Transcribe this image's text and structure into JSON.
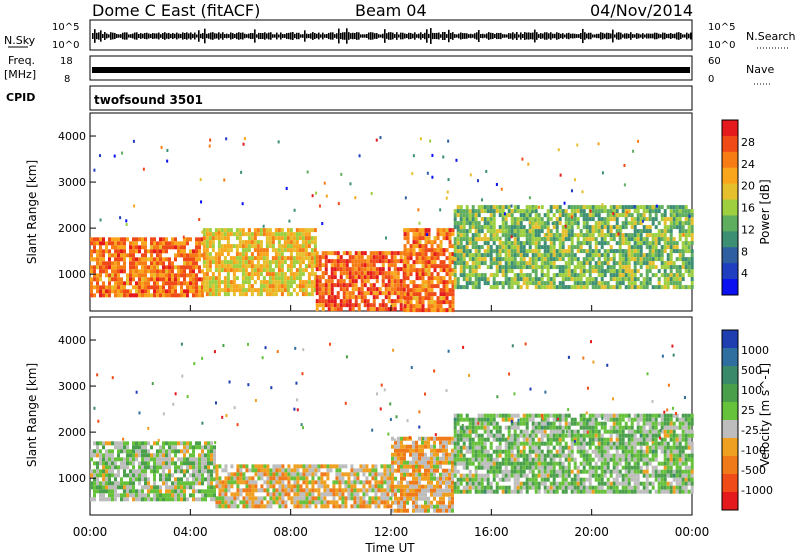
{
  "header": {
    "site": "Dome C East (fitACF)",
    "beam": "Beam 04",
    "date": "04/Nov/2014"
  },
  "panels": {
    "nsky": {
      "label": "N.Sky",
      "ticks_left": [
        "10^5",
        "10^0"
      ],
      "right_label": "N.Search",
      "ticks_right": [
        "10^5",
        "10^0"
      ]
    },
    "freq": {
      "label_top": "Freq.",
      "label_unit": "[MHz]",
      "ticks_left": [
        "18",
        "8"
      ],
      "right_label": "Nave",
      "ticks_right": [
        "60",
        "0"
      ]
    },
    "cpid": {
      "label": "CPID",
      "program": "twofsound 3501"
    }
  },
  "colorbars": {
    "power": {
      "label": "Power [dB]",
      "ticks": [
        "28",
        "24",
        "20",
        "16",
        "12",
        "8",
        "4"
      ],
      "colors": [
        "#e41a1c",
        "#f04a18",
        "#f87c14",
        "#f9a61c",
        "#e6c02c",
        "#9ecf3f",
        "#5fae5f",
        "#3c8f73",
        "#2f5fa0",
        "#1f3fc0",
        "#0a10f0"
      ]
    },
    "velocity": {
      "label": "Velocity [m s^-1]",
      "ticks": [
        "1000",
        "500",
        "100",
        "25",
        "-25",
        "-100",
        "-500",
        "-1000"
      ],
      "colors": [
        "#1f3fb0",
        "#2f6fa0",
        "#3a8a6a",
        "#4aa04a",
        "#66c23a",
        "#bdbdbd",
        "#f0a020",
        "#f07a1a",
        "#f04a18",
        "#e41a1c"
      ]
    }
  },
  "chart_data": [
    {
      "type": "heatmap",
      "name": "power",
      "ylabel": "Slant Range [km]",
      "yticks": [
        "1000",
        "2000",
        "3000",
        "4000"
      ],
      "ylim": [
        200,
        4500
      ],
      "xlim": [
        "00:00",
        "24:00"
      ],
      "bands": [
        {
          "start_h": 0.0,
          "end_h": 4.5,
          "low_km": 500,
          "high_km": 1800,
          "dominant_db": 26
        },
        {
          "start_h": 4.5,
          "end_h": 9.0,
          "low_km": 600,
          "high_km": 2000,
          "dominant_db": 20
        },
        {
          "start_h": 9.0,
          "end_h": 12.5,
          "low_km": 200,
          "high_km": 1500,
          "dominant_db": 28
        },
        {
          "start_h": 12.5,
          "end_h": 14.5,
          "low_km": 200,
          "high_km": 2000,
          "dominant_db": 26
        },
        {
          "start_h": 14.5,
          "end_h": 24.0,
          "low_km": 700,
          "high_km": 2500,
          "dominant_db": 14
        }
      ]
    },
    {
      "type": "heatmap",
      "name": "velocity",
      "ylabel": "Slant Range [km]",
      "yticks": [
        "1000",
        "2000",
        "3000",
        "4000"
      ],
      "ylim": [
        200,
        4500
      ],
      "xlim": [
        "00:00",
        "24:00"
      ],
      "bands": [
        {
          "start_h": 0.0,
          "end_h": 5.0,
          "low_km": 500,
          "high_km": 1800,
          "dominant_ms": 50
        },
        {
          "start_h": 5.0,
          "end_h": 12.0,
          "low_km": 400,
          "high_km": 1300,
          "dominant_ms": -200
        },
        {
          "start_h": 12.0,
          "end_h": 14.5,
          "low_km": 300,
          "high_km": 1900,
          "dominant_ms": -300
        },
        {
          "start_h": 14.5,
          "end_h": 24.0,
          "low_km": 700,
          "high_km": 2400,
          "dominant_ms": 100
        }
      ]
    }
  ],
  "xaxis": {
    "ticks": [
      "00:00",
      "04:00",
      "08:00",
      "12:00",
      "16:00",
      "20:00",
      "00:00"
    ],
    "label": "Time UT"
  }
}
